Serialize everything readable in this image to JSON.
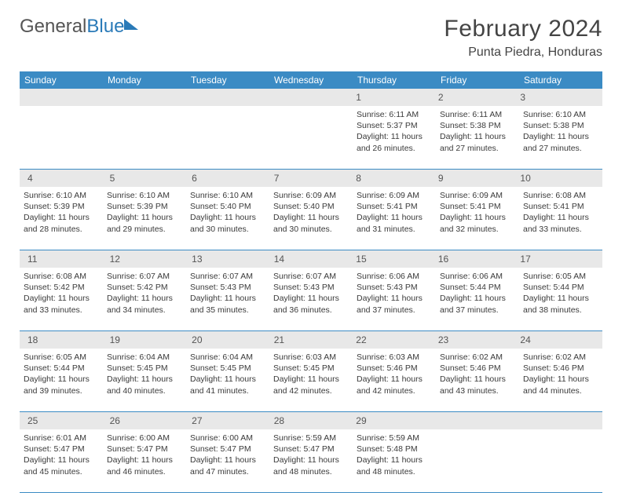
{
  "logo": {
    "part1": "General",
    "part2": "Blue"
  },
  "title": "February 2024",
  "location": "Punta Piedra, Honduras",
  "day_names": [
    "Sunday",
    "Monday",
    "Tuesday",
    "Wednesday",
    "Thursday",
    "Friday",
    "Saturday"
  ],
  "header_bg": "#3b8bc4",
  "header_text_color": "#ffffff",
  "row_stripe_color": "#e8e8e8",
  "border_color": "#3b8bc4",
  "weeks": [
    [
      null,
      null,
      null,
      null,
      {
        "day": "1",
        "sunrise": "6:11 AM",
        "sunset": "5:37 PM",
        "daylight": "11 hours and 26 minutes."
      },
      {
        "day": "2",
        "sunrise": "6:11 AM",
        "sunset": "5:38 PM",
        "daylight": "11 hours and 27 minutes."
      },
      {
        "day": "3",
        "sunrise": "6:10 AM",
        "sunset": "5:38 PM",
        "daylight": "11 hours and 27 minutes."
      }
    ],
    [
      {
        "day": "4",
        "sunrise": "6:10 AM",
        "sunset": "5:39 PM",
        "daylight": "11 hours and 28 minutes."
      },
      {
        "day": "5",
        "sunrise": "6:10 AM",
        "sunset": "5:39 PM",
        "daylight": "11 hours and 29 minutes."
      },
      {
        "day": "6",
        "sunrise": "6:10 AM",
        "sunset": "5:40 PM",
        "daylight": "11 hours and 30 minutes."
      },
      {
        "day": "7",
        "sunrise": "6:09 AM",
        "sunset": "5:40 PM",
        "daylight": "11 hours and 30 minutes."
      },
      {
        "day": "8",
        "sunrise": "6:09 AM",
        "sunset": "5:41 PM",
        "daylight": "11 hours and 31 minutes."
      },
      {
        "day": "9",
        "sunrise": "6:09 AM",
        "sunset": "5:41 PM",
        "daylight": "11 hours and 32 minutes."
      },
      {
        "day": "10",
        "sunrise": "6:08 AM",
        "sunset": "5:41 PM",
        "daylight": "11 hours and 33 minutes."
      }
    ],
    [
      {
        "day": "11",
        "sunrise": "6:08 AM",
        "sunset": "5:42 PM",
        "daylight": "11 hours and 33 minutes."
      },
      {
        "day": "12",
        "sunrise": "6:07 AM",
        "sunset": "5:42 PM",
        "daylight": "11 hours and 34 minutes."
      },
      {
        "day": "13",
        "sunrise": "6:07 AM",
        "sunset": "5:43 PM",
        "daylight": "11 hours and 35 minutes."
      },
      {
        "day": "14",
        "sunrise": "6:07 AM",
        "sunset": "5:43 PM",
        "daylight": "11 hours and 36 minutes."
      },
      {
        "day": "15",
        "sunrise": "6:06 AM",
        "sunset": "5:43 PM",
        "daylight": "11 hours and 37 minutes."
      },
      {
        "day": "16",
        "sunrise": "6:06 AM",
        "sunset": "5:44 PM",
        "daylight": "11 hours and 37 minutes."
      },
      {
        "day": "17",
        "sunrise": "6:05 AM",
        "sunset": "5:44 PM",
        "daylight": "11 hours and 38 minutes."
      }
    ],
    [
      {
        "day": "18",
        "sunrise": "6:05 AM",
        "sunset": "5:44 PM",
        "daylight": "11 hours and 39 minutes."
      },
      {
        "day": "19",
        "sunrise": "6:04 AM",
        "sunset": "5:45 PM",
        "daylight": "11 hours and 40 minutes."
      },
      {
        "day": "20",
        "sunrise": "6:04 AM",
        "sunset": "5:45 PM",
        "daylight": "11 hours and 41 minutes."
      },
      {
        "day": "21",
        "sunrise": "6:03 AM",
        "sunset": "5:45 PM",
        "daylight": "11 hours and 42 minutes."
      },
      {
        "day": "22",
        "sunrise": "6:03 AM",
        "sunset": "5:46 PM",
        "daylight": "11 hours and 42 minutes."
      },
      {
        "day": "23",
        "sunrise": "6:02 AM",
        "sunset": "5:46 PM",
        "daylight": "11 hours and 43 minutes."
      },
      {
        "day": "24",
        "sunrise": "6:02 AM",
        "sunset": "5:46 PM",
        "daylight": "11 hours and 44 minutes."
      }
    ],
    [
      {
        "day": "25",
        "sunrise": "6:01 AM",
        "sunset": "5:47 PM",
        "daylight": "11 hours and 45 minutes."
      },
      {
        "day": "26",
        "sunrise": "6:00 AM",
        "sunset": "5:47 PM",
        "daylight": "11 hours and 46 minutes."
      },
      {
        "day": "27",
        "sunrise": "6:00 AM",
        "sunset": "5:47 PM",
        "daylight": "11 hours and 47 minutes."
      },
      {
        "day": "28",
        "sunrise": "5:59 AM",
        "sunset": "5:47 PM",
        "daylight": "11 hours and 48 minutes."
      },
      {
        "day": "29",
        "sunrise": "5:59 AM",
        "sunset": "5:48 PM",
        "daylight": "11 hours and 48 minutes."
      },
      null,
      null
    ]
  ],
  "labels": {
    "sunrise": "Sunrise:",
    "sunset": "Sunset:",
    "daylight": "Daylight:"
  }
}
